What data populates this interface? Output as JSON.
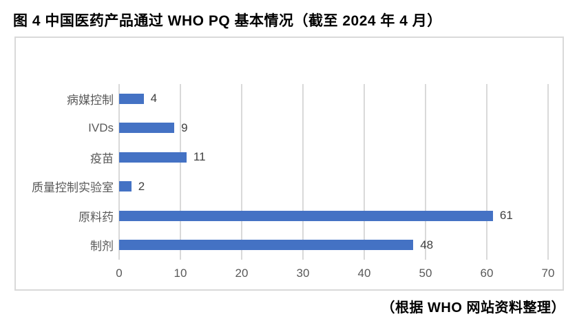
{
  "page": {
    "title": "图 4 中国医药产品通过 WHO PQ 基本情况（截至 2024 年 4 月）",
    "footer": "（根据 WHO 网站资料整理）"
  },
  "colors": {
    "bar": "#4472C4",
    "gridline": "#D9D9D9",
    "frame_border": "#D9D9D9",
    "axis_text": "#595959",
    "value_text": "#404040",
    "title_text": "#000000",
    "background": "#FFFFFF"
  },
  "chart_data": {
    "type": "bar",
    "orientation": "horizontal",
    "title": "图 4 中国医药产品通过 WHO PQ 基本情况（截至 2024 年 4 月）",
    "categories": [
      "病媒控制",
      "IVDs",
      "疫苗",
      "质量控制实验室",
      "原料药",
      "制剂"
    ],
    "values": [
      4,
      9,
      11,
      2,
      61,
      48
    ],
    "xlabel": "",
    "ylabel": "",
    "xlim": [
      0,
      70
    ],
    "xtick_step": 10,
    "xticks": [
      0,
      10,
      20,
      30,
      40,
      50,
      60,
      70
    ],
    "grid": true,
    "legend": false,
    "data_labels": true,
    "source_note": "（根据 WHO 网站资料整理）"
  }
}
